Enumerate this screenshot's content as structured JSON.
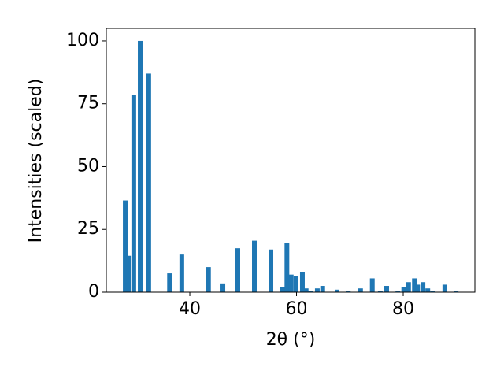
{
  "chart_data": {
    "type": "bar",
    "color": "#1f77b4",
    "x_label": "2θ (°)",
    "y_label": "Intensities (scaled)",
    "x": [
      27.9,
      28.5,
      29.5,
      30.7,
      32.3,
      36.2,
      38.5,
      43.5,
      46.2,
      49.0,
      52.1,
      55.2,
      57.4,
      58.2,
      59.0,
      59.9,
      61.1,
      61.8,
      62.6,
      63.9,
      64.9,
      67.6,
      69.7,
      72.0,
      74.2,
      75.7,
      76.9,
      79.0,
      80.1,
      81.0,
      82.1,
      82.7,
      83.7,
      84.6,
      85.5,
      87.8,
      89.9
    ],
    "values": [
      36.5,
      14.5,
      78.5,
      100,
      87,
      7.5,
      15,
      10,
      3.5,
      17.5,
      20.5,
      17,
      2,
      19.5,
      7,
      6.5,
      8,
      1.5,
      0.5,
      1.5,
      2.5,
      1,
      0.5,
      1.5,
      5.5,
      0.5,
      2.5,
      0.5,
      2,
      4,
      5.5,
      3,
      4,
      1.5,
      0.5,
      3,
      0.5
    ],
    "xlim": [
      24.35,
      93.43
    ],
    "xticks": [
      40,
      60,
      80
    ],
    "ylim": [
      0,
      105
    ],
    "yticks": [
      0,
      25,
      50,
      75,
      100
    ]
  }
}
